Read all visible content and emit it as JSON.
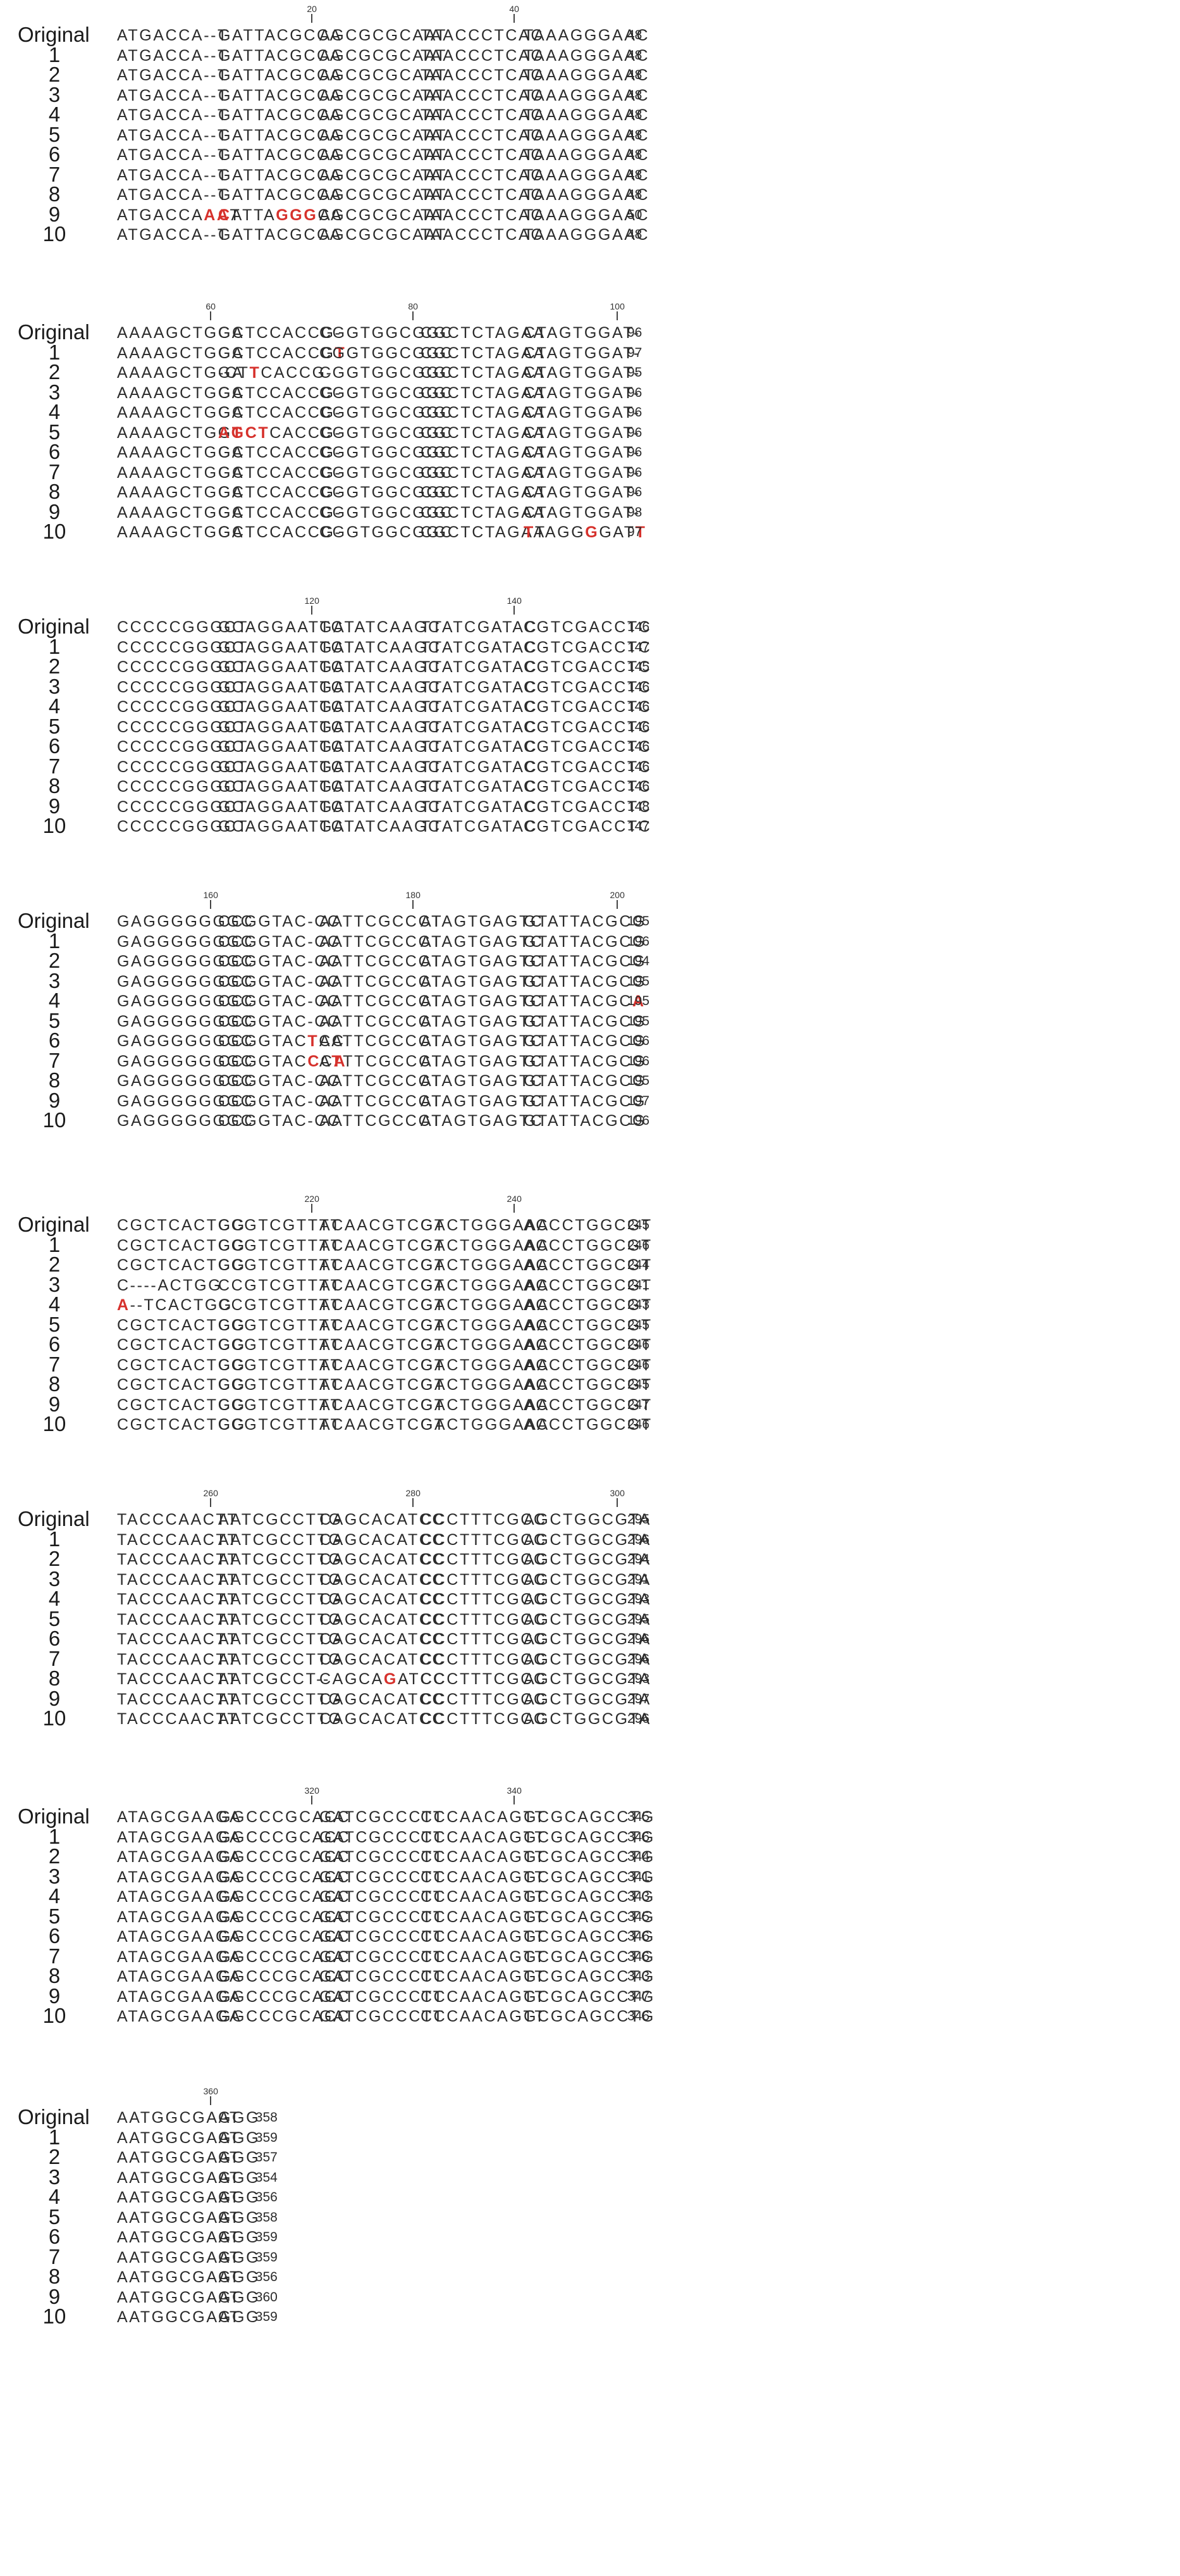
{
  "labels": [
    "Original",
    "1",
    "2",
    "3",
    "4",
    "5",
    "6",
    "7",
    "8",
    "9",
    "10"
  ],
  "mutation_color": "#d6312c",
  "blocks": [
    {
      "ticks": [
        20,
        40
      ],
      "rows": [
        {
          "segs": [
            "ATGACCA--T",
            "GATTACGCCA",
            "AGCGCGCAAT",
            "TAACCCTCAC",
            "TAAAGGGAAC"
          ],
          "end": "48"
        },
        {
          "segs": [
            "ATGACCA--T",
            "GATTACGCCA",
            "AGCGCGCAAT",
            "TAACCCTCAC",
            "TAAAGGGAAC"
          ],
          "end": "48"
        },
        {
          "segs": [
            "ATGACCA--T",
            "GATTACGCCA",
            "AGCGCGCAAT",
            "TAACCCTCAC",
            "TAAAGGGAAC"
          ],
          "end": "48"
        },
        {
          "segs": [
            "ATGACCA--T",
            "GATTACGCCA",
            "AGCGCGCAAT",
            "TAACCCTCAC",
            "TAAAGGGAAC"
          ],
          "end": "48"
        },
        {
          "segs": [
            "ATGACCA--T",
            "GATTACGCCA",
            "AGCGCGCAAT",
            "TAACCCTCAC",
            "TAAAGGGAAC"
          ],
          "end": "48"
        },
        {
          "segs": [
            "ATGACCA--T",
            "GATTACGCCA",
            "AGCGCGCAAT",
            "TAACCCTCAC",
            "TAAAGGGAAC"
          ],
          "end": "48"
        },
        {
          "segs": [
            "ATGACCA--T",
            "GATTACGCCA",
            "AGCGCGCAAT",
            "TAACCCTCAC",
            "TAAAGGGAAC"
          ],
          "end": "48"
        },
        {
          "segs": [
            "ATGACCA--T",
            "GATTACGCCA",
            "AGCGCGCAAT",
            "TAACCCTCAC",
            "TAAAGGGAAC"
          ],
          "end": "48"
        },
        {
          "segs": [
            "ATGACCA--T",
            "GATTACGCCA",
            "AGCGCGCAAT",
            "TAACCCTCAC",
            "TAAAGGGAAC"
          ],
          "end": "48"
        },
        {
          "segs": [
            "ATGACCAAAT",
            "CATTAGGGCA",
            "AGCGCGCAAT",
            "TAACCCTCAC",
            "TAAAGGGAAC"
          ],
          "end": "50",
          "mut": {
            "0": [
              7,
              8
            ],
            "1": [
              0,
              5,
              6,
              7
            ]
          }
        },
        {
          "segs": [
            "ATGACCA--T",
            "GATTACGCCA",
            "AGCGCGCAAT",
            "TAACCCTCAC",
            "TAAAGGGAAC"
          ],
          "end": "48"
        }
      ]
    },
    {
      "ticks": [
        60,
        80,
        100
      ],
      "rows": [
        {
          "segs": [
            "AAAAGCTGGA",
            "GCTCCACCG-",
            "CGGTGGCGGC",
            "CGCTCTAGAA",
            "CTAGTGGAT-"
          ],
          "end": "96"
        },
        {
          "segs": [
            "AAAAGCTGGA",
            "GCTCCACCGT",
            "CGGTGGCGGC",
            "CGCTCTAGAA",
            "CTAGTGGAT-"
          ],
          "end": "97",
          "mut": {
            "1": [
              9
            ]
          }
        },
        {
          "segs": [
            "AAAAGCTGGA",
            "-CTTCACCG-",
            "CGGTGGCGGC",
            "CGCTCTAGAA",
            "CTAGTGGAT-"
          ],
          "end": "95",
          "mut": {
            "1": [
              3
            ]
          }
        },
        {
          "segs": [
            "AAAAGCTGGA",
            "GCTCCACCG-",
            "CGGTGGCGGC",
            "CGCTCTAGAA",
            "CTAGTGGAT-"
          ],
          "end": "96"
        },
        {
          "segs": [
            "AAAAGCTGGA",
            "GCTCCACCG-",
            "CGGTGGCGGC",
            "CGCTCTAGAA",
            "CTAGTGGAT-"
          ],
          "end": "96"
        },
        {
          "segs": [
            "AAAAGCTGGT",
            "AGCTCACCG-",
            "CGGTGGCGGC",
            "CGCTCTAGAA",
            "CTAGTGGAT-"
          ],
          "end": "96",
          "mut": {
            "0": [
              9
            ],
            "1": [
              0,
              1,
              2,
              3
            ]
          }
        },
        {
          "segs": [
            "AAAAGCTGGA",
            "GCTCCACCG-",
            "CGGTGGCGGC",
            "CGCTCTAGAA",
            "CTAGTGGAT-"
          ],
          "end": "96"
        },
        {
          "segs": [
            "AAAAGCTGGA",
            "GCTCCACCG-",
            "CGGTGGCGGC",
            "CGCTCTAGAA",
            "CTAGTGGAT-"
          ],
          "end": "96"
        },
        {
          "segs": [
            "AAAAGCTGGA",
            "GCTCCACCG-",
            "CGGTGGCGGC",
            "CGCTCTAGAA",
            "CTAGTGGAT-"
          ],
          "end": "96"
        },
        {
          "segs": [
            "AAAAGCTGGA",
            "GCTCCACCG-",
            "CGGTGGCGGC",
            "CGCTCTAGAA",
            "CTAGTGGAT-"
          ],
          "end": "98"
        },
        {
          "segs": [
            "AAAAGCTGGA",
            "GCTCCACCG-",
            "CGGTGGCGGC",
            "CGCTCTAGAA",
            "TTAGGGGATT"
          ],
          "end": "97",
          "mut": {
            "4": [
              0,
              5,
              9
            ]
          }
        }
      ]
    },
    {
      "ticks": [
        120,
        140
      ],
      "rows": [
        {
          "segs": [
            "CCCCCGGGCT",
            "GCAGGAATTC",
            "GATATCAAGC",
            "TTATCGATAC",
            "CGTCGACCTC"
          ],
          "end": "146"
        },
        {
          "segs": [
            "CCCCCGGGCT",
            "GCAGGAATTC",
            "GATATCAAGC",
            "TTATCGATAC",
            "CGTCGACCTC"
          ],
          "end": "147"
        },
        {
          "segs": [
            "CCCCCGGGCT",
            "GCAGGAATTC",
            "GATATCAAGC",
            "TTATCGATAC",
            "CGTCGACCTC"
          ],
          "end": "145"
        },
        {
          "segs": [
            "CCCCCGGGCT",
            "GCAGGAATTC",
            "GATATCAAGC",
            "TTATCGATAC",
            "CGTCGACCTC"
          ],
          "end": "146"
        },
        {
          "segs": [
            "CCCCCGGGCT",
            "GCAGGAATTC",
            "GATATCAAGC",
            "TTATCGATAC",
            "CGTCGACCTC"
          ],
          "end": "146"
        },
        {
          "segs": [
            "CCCCCGGGCT",
            "GCAGGAATTC",
            "GATATCAAGC",
            "TTATCGATAC",
            "CGTCGACCTC"
          ],
          "end": "146"
        },
        {
          "segs": [
            "CCCCCGGGCT",
            "GCAGGAATTC",
            "GATATCAAGC",
            "TTATCGATAC",
            "CGTCGACCTC"
          ],
          "end": "146"
        },
        {
          "segs": [
            "CCCCCGGGCT",
            "GCAGGAATTC",
            "GATATCAAGC",
            "TTATCGATAC",
            "CGTCGACCTC"
          ],
          "end": "146"
        },
        {
          "segs": [
            "CCCCCGGGCT",
            "GCAGGAATTC",
            "GATATCAAGC",
            "TTATCGATAC",
            "CGTCGACCTC"
          ],
          "end": "146"
        },
        {
          "segs": [
            "CCCCCGGGCT",
            "GCAGGAATTC",
            "GATATCAAGC",
            "TTATCGATAC",
            "CGTCGACCTC"
          ],
          "end": "148"
        },
        {
          "segs": [
            "CCCCCGGGCT",
            "GCAGGAATTC",
            "GATATCAAGC",
            "TTATCGATAC",
            "CGTCGACCTC"
          ],
          "end": "147"
        }
      ]
    },
    {
      "ticks": [
        160,
        180,
        200
      ],
      "rows": [
        {
          "segs": [
            "GAGGGGGGGC",
            "CCGGTAC-CC",
            "AATTCGCCCT",
            "ATAGTGAGTC",
            "GTATTACGCG"
          ],
          "end": "195"
        },
        {
          "segs": [
            "GAGGGGGGGC",
            "CCGGTAC-CC",
            "AATTCGCCCT",
            "ATAGTGAGTC",
            "GTATTACGCG"
          ],
          "end": "196"
        },
        {
          "segs": [
            "GAGGGGGGGC",
            "CCGGTAC-CC",
            "AATTCGCCCT",
            "ATAGTGAGTC",
            "GTATTACGCG"
          ],
          "end": "194"
        },
        {
          "segs": [
            "GAGGGGGGGC",
            "CCGGTAC-CC",
            "AATTCGCCCT",
            "ATAGTGAGTC",
            "GTATTACGCG"
          ],
          "end": "195"
        },
        {
          "segs": [
            "GAGGGGGGGC",
            "CCGGTAC-CC",
            "AATTCGCCCT",
            "ATAGTGAGTC",
            "GTATTACGCA"
          ],
          "end": "195",
          "mut": {
            "4": [
              9
            ]
          }
        },
        {
          "segs": [
            "GAGGGGGGGC",
            "CCGGTAC-CC",
            "AATTCGCCCT",
            "ATAGTGAGTC",
            "GTATTACGCG"
          ],
          "end": "195"
        },
        {
          "segs": [
            "GAGGGGGGGC",
            "CCGGTACTCC",
            "AATTCGCCCT",
            "ATAGTGAGTC",
            "GTATTACGCG"
          ],
          "end": "196",
          "mut": {
            "1": [
              7
            ]
          }
        },
        {
          "segs": [
            "GAGGGGGGGC",
            "CCGGTACCCA",
            "ATTTCGCCCT",
            "ATAGTGAGTC",
            "GTATTACGCG"
          ],
          "end": "196",
          "mut": {
            "1": [
              7,
              9
            ],
            "2": [
              1
            ]
          }
        },
        {
          "segs": [
            "GAGGGGGGGC",
            "CCGGTAC-CC",
            "AATTCGCCCT",
            "ATAGTGAGTC",
            "GTATTACGCG"
          ],
          "end": "195"
        },
        {
          "segs": [
            "GAGGGGGGGC",
            "CCGGTAC-CC",
            "AATTCGCCCT",
            "ATAGTGAGTC",
            "GTATTACGCG"
          ],
          "end": "197"
        },
        {
          "segs": [
            "GAGGGGGGGC",
            "CCGGTAC-CC",
            "AATTCGCCCT",
            "ATAGTGAGTC",
            "GTATTACGCG"
          ],
          "end": "196"
        }
      ]
    },
    {
      "ticks": [
        220,
        240
      ],
      "rows": [
        {
          "segs": [
            "CGCTCACTGG",
            "CCGTCGTTTT",
            "ACAACGTCGT",
            "GACTGGGAAA",
            "ACCCTGGCGT"
          ],
          "end": "245"
        },
        {
          "segs": [
            "CGCTCACTGG",
            "CCGTCGTTTT",
            "ACAACGTCGT",
            "GACTGGGAAA",
            "ACCCTGGCGT"
          ],
          "end": "246"
        },
        {
          "segs": [
            "CGCTCACTGG",
            "CCGTCGTTTT",
            "ACAACGTCGT",
            "GACTGGGAAA",
            "ACCCTGGCGT"
          ],
          "end": "244"
        },
        {
          "segs": [
            "C----ACTGG",
            "CCGTCGTTTT",
            "ACAACGTCGT",
            "GACTGGGAAA",
            "ACCCTGGCGT"
          ],
          "end": "241"
        },
        {
          "segs": [
            "A--TCACTGG",
            "CCGTCGTTTT",
            "ACAACGTCGT",
            "GACTGGGAAA",
            "ACCCTGGCGT"
          ],
          "end": "243",
          "mut": {
            "0": [
              0
            ]
          }
        },
        {
          "segs": [
            "CGCTCACTGG",
            "CCGTCGTTTT",
            "ACAACGTCGT",
            "GACTGGGAAA",
            "ACCCTGGCGT"
          ],
          "end": "245"
        },
        {
          "segs": [
            "CGCTCACTGG",
            "CCGTCGTTTT",
            "ACAACGTCGT",
            "GACTGGGAAA",
            "ACCCTGGCGT"
          ],
          "end": "246"
        },
        {
          "segs": [
            "CGCTCACTGG",
            "CCGTCGTTTT",
            "ACAACGTCGT",
            "GACTGGGAAA",
            "ACCCTGGCGT"
          ],
          "end": "246"
        },
        {
          "segs": [
            "CGCTCACTGG",
            "CCGTCGTTTT",
            "ACAACGTCGT",
            "GACTGGGAAA",
            "ACCCTGGCGT"
          ],
          "end": "245"
        },
        {
          "segs": [
            "CGCTCACTGG",
            "CCGTCGTTTT",
            "ACAACGTCGT",
            "GACTGGGAAA",
            "ACCCTGGCGT"
          ],
          "end": "247"
        },
        {
          "segs": [
            "CGCTCACTGG",
            "CCGTCGTTTT",
            "ACAACGTCGT",
            "GACTGGGAAA",
            "ACCCTGGCGT"
          ],
          "end": "246"
        }
      ]
    },
    {
      "ticks": [
        260,
        280,
        300
      ],
      "rows": [
        {
          "segs": [
            "TACCCAACTT",
            "AATCGCCTTG",
            "CAGCACATCC",
            "CCCTTTCGCC",
            "AGCTGGCGTA"
          ],
          "end": "295"
        },
        {
          "segs": [
            "TACCCAACTT",
            "AATCGCCTTG",
            "CAGCACATCC",
            "CCCTTTCGCC",
            "AGCTGGCGTA"
          ],
          "end": "296"
        },
        {
          "segs": [
            "TACCCAACTT",
            "AATCGCCTTG",
            "CAGCACATCC",
            "CCCTTTCGCC",
            "AGCTGGCGTA"
          ],
          "end": "294"
        },
        {
          "segs": [
            "TACCCAACTT",
            "AATCGCCTTG",
            "CAGCACATCC",
            "CCCTTTCGCC",
            "AGCTGGCGTA"
          ],
          "end": "291"
        },
        {
          "segs": [
            "TACCCAACTT",
            "AATCGCCTTG",
            "CAGCACATCC",
            "CCCTTTCGCC",
            "AGCTGGCGTA"
          ],
          "end": "293"
        },
        {
          "segs": [
            "TACCCAACTT",
            "AATCGCCTTG",
            "CAGCACATCC",
            "CCCTTTCGCC",
            "AGCTGGCGTA"
          ],
          "end": "295"
        },
        {
          "segs": [
            "TACCCAACTT",
            "AATCGCCTTG",
            "CAGCACATCC",
            "CCCTTTCGCC",
            "AGCTGGCGTA"
          ],
          "end": "296"
        },
        {
          "segs": [
            "TACCCAACTT",
            "AATCGCCTTG",
            "CAGCACATCC",
            "CCCTTTCGCC",
            "AGCTGGCGTA"
          ],
          "end": "296"
        },
        {
          "segs": [
            "TACCCAACTT",
            "AATCGCCT--",
            "CAGCAGATCC",
            "CCCTTTCGCC",
            "AGCTGGCGTA"
          ],
          "end": "293",
          "mut": {
            "2": [
              5
            ]
          }
        },
        {
          "segs": [
            "TACCCAACTT",
            "AATCGCCTTG",
            "CAGCACATCC",
            "CCCTTTCGCC",
            "AGCTGGCGTA"
          ],
          "end": "297"
        },
        {
          "segs": [
            "TACCCAACTT",
            "AATCGCCTTG",
            "CAGCACATCC",
            "CCCTTTCGCC",
            "AGCTGGCGTA"
          ],
          "end": "296"
        }
      ]
    },
    {
      "ticks": [
        320,
        340
      ],
      "rows": [
        {
          "segs": [
            "ATAGCGAAGA",
            "GGCCCGCACC",
            "GATCGCCCTT",
            "CCCAACAGTT",
            "GCGCAGCCTG"
          ],
          "end": "345"
        },
        {
          "segs": [
            "ATAGCGAAGA",
            "GGCCCGCACC",
            "GATCGCCCTT",
            "CCCAACAGTT",
            "GCGCAGCCTG"
          ],
          "end": "346"
        },
        {
          "segs": [
            "ATAGCGAAGA",
            "GGCCCGCACC",
            "GATCGCCCTT",
            "CCCAACAGTT",
            "GCGCAGCCTG"
          ],
          "end": "344"
        },
        {
          "segs": [
            "ATAGCGAAGA",
            "GGCCCGCACC",
            "GATCGCCCTT",
            "CCCAACAGTT",
            "GCGCAGCCTG"
          ],
          "end": "341"
        },
        {
          "segs": [
            "ATAGCGAAGA",
            "GGCCCGCACC",
            "GATCGCCCTT",
            "CCCAACAGTT",
            "GCGCAGCCTG"
          ],
          "end": "343"
        },
        {
          "segs": [
            "ATAGCGAAGA",
            "GGCCCGCACC",
            "GATCGCCCTT",
            "CCCAACAGTT",
            "GCGCAGCCTG"
          ],
          "end": "345"
        },
        {
          "segs": [
            "ATAGCGAAGA",
            "GGCCCGCACC",
            "GATCGCCCTT",
            "CCCAACAGTT",
            "GCGCAGCCTG"
          ],
          "end": "346"
        },
        {
          "segs": [
            "ATAGCGAAGA",
            "GGCCCGCACC",
            "GATCGCCCTT",
            "CCCAACAGTT",
            "GCGCAGCCTG"
          ],
          "end": "346"
        },
        {
          "segs": [
            "ATAGCGAAGA",
            "GGCCCGCACC",
            "GATCGCCCTT",
            "CCCAACAGTT",
            "GCGCAGCCTG"
          ],
          "end": "343"
        },
        {
          "segs": [
            "ATAGCGAAGA",
            "GGCCCGCACC",
            "GATCGCCCTT",
            "CCCAACAGTT",
            "GCGCAGCCTG"
          ],
          "end": "347"
        },
        {
          "segs": [
            "ATAGCGAAGA",
            "GGCCCGCACC",
            "GATCGCCCTT",
            "CCCAACAGTT",
            "GCGCAGCCTG"
          ],
          "end": "346"
        }
      ]
    },
    {
      "ticks": [
        360
      ],
      "rows": [
        {
          "segs": [
            "AATGGCGAAT",
            "GGG"
          ],
          "end": "358"
        },
        {
          "segs": [
            "AATGGCGAAT",
            "GGG"
          ],
          "end": "359"
        },
        {
          "segs": [
            "AATGGCGAAT",
            "GGG"
          ],
          "end": "357"
        },
        {
          "segs": [
            "AATGGCGAAT",
            "GGG"
          ],
          "end": "354"
        },
        {
          "segs": [
            "AATGGCGAAT",
            "GGG"
          ],
          "end": "356"
        },
        {
          "segs": [
            "AATGGCGAAT",
            "GGG"
          ],
          "end": "358"
        },
        {
          "segs": [
            "AATGGCGAAT",
            "GGG"
          ],
          "end": "359"
        },
        {
          "segs": [
            "AATGGCGAAT",
            "GGG"
          ],
          "end": "359"
        },
        {
          "segs": [
            "AATGGCGAAT",
            "GGG"
          ],
          "end": "356"
        },
        {
          "segs": [
            "AATGGCGAAT",
            "GGG"
          ],
          "end": "360"
        },
        {
          "segs": [
            "AATGGCGAAT",
            "GGG"
          ],
          "end": "359"
        }
      ]
    }
  ]
}
